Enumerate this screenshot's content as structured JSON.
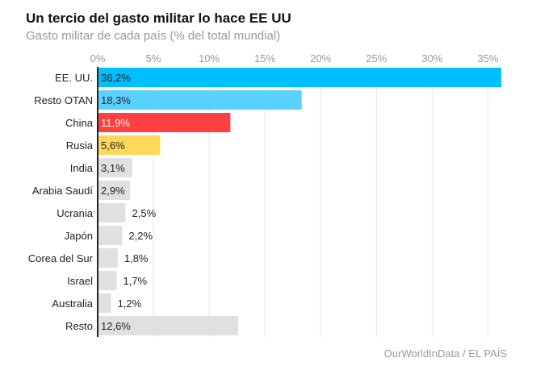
{
  "chart_data": {
    "type": "bar",
    "orientation": "horizontal",
    "title": "Un tercio del gasto militar lo hace EE UU",
    "subtitle": "Gasto militar de cada país (% del total mundial)",
    "source": "OurWorldInData / EL PAÍS",
    "xlim": [
      0,
      36.2
    ],
    "xticks": [
      0,
      5,
      10,
      15,
      20,
      25,
      30,
      35
    ],
    "xtick_labels": [
      "0%",
      "5%",
      "10%",
      "15%",
      "20%",
      "25%",
      "30%",
      "35%"
    ],
    "grid": true,
    "categories": [
      "EE. UU.",
      "Resto OTAN",
      "China",
      "Rusia",
      "India",
      "Arabia Saudí",
      "Ucrania",
      "Japón",
      "Corea del Sur",
      "Israel",
      "Australia",
      "Resto"
    ],
    "values": [
      36.2,
      18.3,
      11.9,
      5.6,
      3.1,
      2.9,
      2.5,
      2.2,
      1.8,
      1.7,
      1.2,
      12.6
    ],
    "value_labels": [
      "36,2%",
      "18,3%",
      "11,9%",
      "5,6%",
      "3,1%",
      "2,9%",
      "2,5%",
      "2,2%",
      "1,8%",
      "1,7%",
      "1,2%",
      "12,6%"
    ],
    "colors": [
      "#00bfff",
      "#5ad2ff",
      "#ff4040",
      "#ffd75a",
      "#e0e0e0",
      "#e0e0e0",
      "#e0e0e0",
      "#e0e0e0",
      "#e0e0e0",
      "#e0e0e0",
      "#e0e0e0",
      "#e0e0e0"
    ],
    "label_colors": [
      "#222",
      "#222",
      "#fff",
      "#222",
      "#222",
      "#222",
      "#222",
      "#222",
      "#222",
      "#222",
      "#222",
      "#222"
    ]
  }
}
